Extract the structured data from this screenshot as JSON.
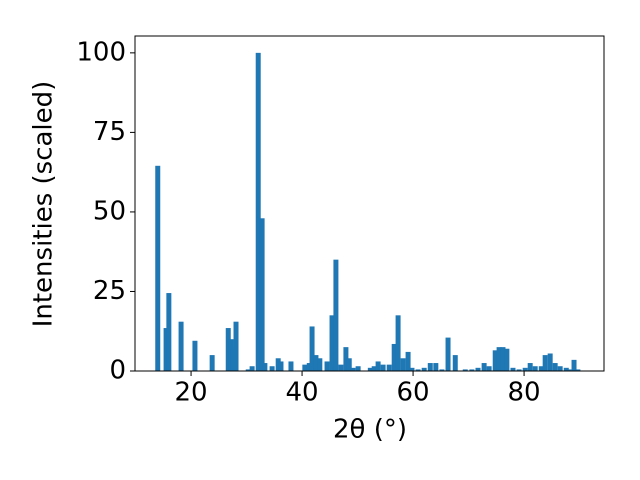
{
  "chart_data": {
    "type": "bar",
    "xlabel": "2θ (°)",
    "ylabel": "Intensities (scaled)",
    "x": [
      14.0,
      15.5,
      16.0,
      18.2,
      20.7,
      23.8,
      26.7,
      27.2,
      27.6,
      28.1,
      30.3,
      31.0,
      32.1,
      32.8,
      33.3,
      34.6,
      35.7,
      36.2,
      38.0,
      40.5,
      41.3,
      41.8,
      42.5,
      43.2,
      44.5,
      45.4,
      46.1,
      47.0,
      47.9,
      48.5,
      49.2,
      50.1,
      52.3,
      53.0,
      53.7,
      54.6,
      55.7,
      56.6,
      57.3,
      58.2,
      59.1,
      59.8,
      60.9,
      62.0,
      63.1,
      64.1,
      65.2,
      66.3,
      67.6,
      69.4,
      70.6,
      71.7,
      72.8,
      73.7,
      74.8,
      75.5,
      76.2,
      76.9,
      78.0,
      79.1,
      80.2,
      81.1,
      82.0,
      83.1,
      83.8,
      84.7,
      85.6,
      86.5,
      87.6,
      88.1,
      89.0,
      89.7
    ],
    "values": [
      64.5,
      13.5,
      24.5,
      15.5,
      9.5,
      5,
      13.5,
      10,
      7,
      15.5,
      0.5,
      1.5,
      100,
      48,
      2.5,
      1.5,
      4,
      3,
      3,
      2,
      2.5,
      14,
      5,
      4,
      3,
      17.5,
      35,
      2,
      7.5,
      4,
      1,
      1.5,
      1,
      1.5,
      3,
      2,
      2,
      8.5,
      17.5,
      4,
      6,
      1,
      0.5,
      1,
      2.5,
      2.5,
      0.5,
      10.5,
      5,
      0.5,
      0.5,
      1,
      2.5,
      1.5,
      6.5,
      7.5,
      7.5,
      7,
      1,
      0.5,
      1,
      2.5,
      1.5,
      1.5,
      5,
      5.5,
      2.5,
      1.5,
      1,
      0.5,
      3.5,
      0.5
    ],
    "color": "#1f77b4",
    "xlim": [
      9.9,
      94.4
    ],
    "ylim": [
      0,
      105.3
    ],
    "xticks": [
      20,
      40,
      60,
      80
    ],
    "yticks": [
      0,
      25,
      50,
      75,
      100
    ]
  }
}
